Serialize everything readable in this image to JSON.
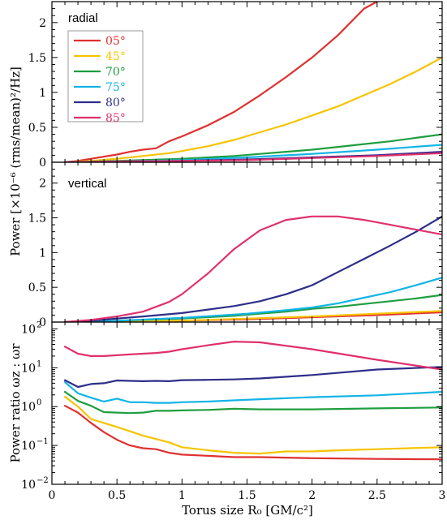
{
  "figure": {
    "xlabel": "Torus size R₀ [GM/c²]",
    "ylabel_power": "Power [×10⁻⁶ (rms/mean)²/Hz]",
    "ylabel_ratio": "Power ratio ωz : ωr"
  },
  "legend": {
    "entries": [
      {
        "label": "05°",
        "color": "#e03030"
      },
      {
        "label": "45°",
        "color": "#f5c400"
      },
      {
        "label": "70°",
        "color": "#1f9e3f"
      },
      {
        "label": "75°",
        "color": "#12b4e6"
      },
      {
        "label": "80°",
        "color": "#2e2e8a"
      },
      {
        "label": "85°",
        "color": "#e0306e"
      }
    ]
  },
  "chart_data": [
    {
      "type": "line",
      "title": "radial",
      "xlim": [
        0,
        3
      ],
      "ylim": [
        0,
        2.3
      ],
      "xticks": [
        0,
        0.5,
        1,
        1.5,
        2,
        2.5,
        3
      ],
      "yticks": [
        0,
        0.5,
        1,
        1.5,
        2
      ],
      "ytick_labels": [
        "0",
        "0.5",
        "1",
        "1.5",
        "2"
      ],
      "series": [
        {
          "name": "05°",
          "color": "#e03030",
          "x": [
            0.1,
            0.2,
            0.3,
            0.4,
            0.5,
            0.6,
            0.7,
            0.8,
            0.9,
            1.0,
            1.2,
            1.4,
            1.6,
            1.8,
            2.0,
            2.2,
            2.4,
            2.5
          ],
          "y": [
            0.0,
            0.02,
            0.05,
            0.08,
            0.11,
            0.15,
            0.18,
            0.2,
            0.3,
            0.37,
            0.53,
            0.72,
            0.96,
            1.22,
            1.5,
            1.82,
            2.2,
            2.3
          ]
        },
        {
          "name": "45°",
          "color": "#f5c400",
          "x": [
            0.1,
            0.3,
            0.5,
            0.7,
            0.9,
            1.0,
            1.2,
            1.4,
            1.6,
            1.8,
            2.0,
            2.2,
            2.4,
            2.6,
            2.8,
            3.0
          ],
          "y": [
            0.0,
            0.02,
            0.05,
            0.09,
            0.13,
            0.16,
            0.23,
            0.32,
            0.43,
            0.54,
            0.67,
            0.8,
            0.96,
            1.12,
            1.3,
            1.5
          ]
        },
        {
          "name": "70°",
          "color": "#1f9e3f",
          "x": [
            0.1,
            0.5,
            1.0,
            1.4,
            1.6,
            1.8,
            2.0,
            2.2,
            2.4,
            2.6,
            2.8,
            3.0
          ],
          "y": [
            0.0,
            0.02,
            0.05,
            0.09,
            0.12,
            0.15,
            0.18,
            0.22,
            0.26,
            0.3,
            0.35,
            0.4
          ]
        },
        {
          "name": "75°",
          "color": "#12b4e6",
          "x": [
            0.1,
            0.5,
            1.0,
            1.5,
            2.0,
            2.5,
            3.0
          ],
          "y": [
            0.0,
            0.01,
            0.03,
            0.07,
            0.12,
            0.18,
            0.25
          ]
        },
        {
          "name": "80°",
          "color": "#2e2e8a",
          "x": [
            0.1,
            0.5,
            1.0,
            1.5,
            2.0,
            2.5,
            3.0
          ],
          "y": [
            0.0,
            0.01,
            0.02,
            0.04,
            0.07,
            0.1,
            0.15
          ]
        },
        {
          "name": "85°",
          "color": "#e0306e",
          "x": [
            0.1,
            0.5,
            1.0,
            1.5,
            2.0,
            2.5,
            3.0
          ],
          "y": [
            0.0,
            0.01,
            0.02,
            0.03,
            0.06,
            0.09,
            0.13
          ]
        }
      ]
    },
    {
      "type": "line",
      "title": "vertical",
      "xlim": [
        0,
        3
      ],
      "ylim": [
        0,
        2.3
      ],
      "xticks": [
        0,
        0.5,
        1,
        1.5,
        2,
        2.5,
        3
      ],
      "yticks": [
        0,
        0.5,
        1,
        1.5,
        2
      ],
      "ytick_labels": [
        "0",
        "0.5",
        "1",
        "1.5",
        "2"
      ],
      "series": [
        {
          "name": "05°",
          "color": "#e03030",
          "x": [
            0.1,
            0.5,
            1.0,
            1.5,
            2.0,
            2.5,
            3.0
          ],
          "y": [
            0.0,
            0.01,
            0.02,
            0.04,
            0.07,
            0.1,
            0.14
          ]
        },
        {
          "name": "45°",
          "color": "#f5c400",
          "x": [
            0.1,
            0.5,
            1.0,
            1.5,
            2.0,
            2.5,
            3.0
          ],
          "y": [
            0.0,
            0.01,
            0.02,
            0.05,
            0.08,
            0.12,
            0.16
          ]
        },
        {
          "name": "70°",
          "color": "#1f9e3f",
          "x": [
            0.1,
            0.5,
            1.0,
            1.4,
            1.6,
            1.8,
            2.0,
            2.2,
            2.4,
            2.6,
            2.8,
            3.0
          ],
          "y": [
            0.0,
            0.02,
            0.05,
            0.09,
            0.12,
            0.15,
            0.19,
            0.22,
            0.26,
            0.3,
            0.34,
            0.39
          ]
        },
        {
          "name": "75°",
          "color": "#12b4e6",
          "x": [
            0.1,
            0.5,
            1.0,
            1.5,
            1.8,
            2.0,
            2.2,
            2.4,
            2.6,
            2.8,
            3.0
          ],
          "y": [
            0.0,
            0.02,
            0.06,
            0.12,
            0.17,
            0.21,
            0.27,
            0.35,
            0.43,
            0.53,
            0.64
          ]
        },
        {
          "name": "80°",
          "color": "#2e2e8a",
          "x": [
            0.1,
            0.3,
            0.5,
            0.7,
            1.0,
            1.2,
            1.4,
            1.6,
            1.8,
            2.0,
            2.2,
            2.4,
            2.6,
            2.8,
            3.0
          ],
          "y": [
            0.0,
            0.02,
            0.05,
            0.08,
            0.13,
            0.18,
            0.23,
            0.3,
            0.4,
            0.53,
            0.72,
            0.91,
            1.1,
            1.3,
            1.52
          ]
        },
        {
          "name": "85°",
          "color": "#e0306e",
          "x": [
            0.1,
            0.3,
            0.5,
            0.7,
            0.8,
            0.9,
            1.0,
            1.2,
            1.4,
            1.6,
            1.8,
            2.0,
            2.2,
            2.4,
            2.6,
            2.8,
            3.0
          ],
          "y": [
            0.0,
            0.03,
            0.08,
            0.15,
            0.22,
            0.29,
            0.4,
            0.7,
            1.05,
            1.32,
            1.47,
            1.52,
            1.52,
            1.47,
            1.4,
            1.33,
            1.26
          ]
        }
      ]
    },
    {
      "type": "line",
      "title": "",
      "yscale": "log",
      "xlim": [
        0,
        3
      ],
      "ylim": [
        0.01,
        150
      ],
      "xticks": [
        0,
        0.5,
        1,
        1.5,
        2,
        2.5,
        3
      ],
      "xtick_labels": [
        "0",
        "0.5",
        "1",
        "1.5",
        "2",
        "2.5",
        "3"
      ],
      "yticks": [
        0.01,
        0.1,
        1,
        10,
        100
      ],
      "ytick_labels": [
        {
          "base": "10",
          "exp": "−2"
        },
        {
          "base": "10",
          "exp": "−1"
        },
        {
          "base": "10",
          "exp": "0"
        },
        {
          "base": "10",
          "exp": "1"
        },
        {
          "base": "10",
          "exp": "2"
        }
      ],
      "series": [
        {
          "name": "05°",
          "color": "#e03030",
          "x": [
            0.1,
            0.2,
            0.3,
            0.4,
            0.5,
            0.6,
            0.7,
            0.8,
            0.9,
            1.0,
            1.2,
            1.4,
            1.6,
            2.0,
            2.5,
            3.0
          ],
          "y": [
            1.05,
            0.7,
            0.38,
            0.22,
            0.14,
            0.1,
            0.085,
            0.08,
            0.065,
            0.058,
            0.054,
            0.05,
            0.05,
            0.047,
            0.045,
            0.044
          ]
        },
        {
          "name": "45°",
          "color": "#f5c400",
          "x": [
            0.1,
            0.2,
            0.3,
            0.5,
            0.7,
            0.9,
            1.0,
            1.2,
            1.4,
            1.6,
            1.8,
            2.0,
            2.2,
            2.5,
            3.0
          ],
          "y": [
            1.8,
            1.0,
            0.48,
            0.3,
            0.18,
            0.12,
            0.09,
            0.075,
            0.065,
            0.062,
            0.07,
            0.07,
            0.075,
            0.08,
            0.09
          ]
        },
        {
          "name": "70°",
          "color": "#1f9e3f",
          "x": [
            0.1,
            0.2,
            0.3,
            0.4,
            0.5,
            0.6,
            0.7,
            0.8,
            0.9,
            1.0,
            1.2,
            1.4,
            1.6,
            2.0,
            2.5,
            3.0
          ],
          "y": [
            2.4,
            1.4,
            1.05,
            0.72,
            0.7,
            0.68,
            0.7,
            0.78,
            0.78,
            0.8,
            0.82,
            0.88,
            0.85,
            0.85,
            0.9,
            0.95
          ]
        },
        {
          "name": "75°",
          "color": "#12b4e6",
          "x": [
            0.1,
            0.2,
            0.3,
            0.4,
            0.5,
            0.6,
            0.7,
            0.8,
            0.9,
            1.0,
            1.2,
            1.4,
            1.6,
            2.0,
            2.5,
            3.0
          ],
          "y": [
            4.3,
            2.2,
            1.7,
            1.35,
            1.6,
            1.3,
            1.3,
            1.25,
            1.25,
            1.3,
            1.35,
            1.45,
            1.55,
            1.75,
            1.95,
            2.4
          ]
        },
        {
          "name": "80°",
          "color": "#2e2e8a",
          "x": [
            0.1,
            0.2,
            0.3,
            0.4,
            0.5,
            0.6,
            0.7,
            0.8,
            0.9,
            1.0,
            1.2,
            1.4,
            1.6,
            2.0,
            2.5,
            3.0
          ],
          "y": [
            4.8,
            3.2,
            3.8,
            4.0,
            4.7,
            4.6,
            4.5,
            4.6,
            4.5,
            4.8,
            4.9,
            5.0,
            5.3,
            6.5,
            9.0,
            10.5
          ]
        },
        {
          "name": "85°",
          "color": "#e0306e",
          "x": [
            0.1,
            0.2,
            0.3,
            0.4,
            0.5,
            0.6,
            0.7,
            0.8,
            0.9,
            1.0,
            1.2,
            1.4,
            1.6,
            2.0,
            2.5,
            3.0
          ],
          "y": [
            35,
            23,
            20,
            20,
            21,
            22,
            23,
            24,
            26,
            30,
            38,
            47,
            45,
            30,
            16,
            9
          ]
        }
      ]
    }
  ]
}
